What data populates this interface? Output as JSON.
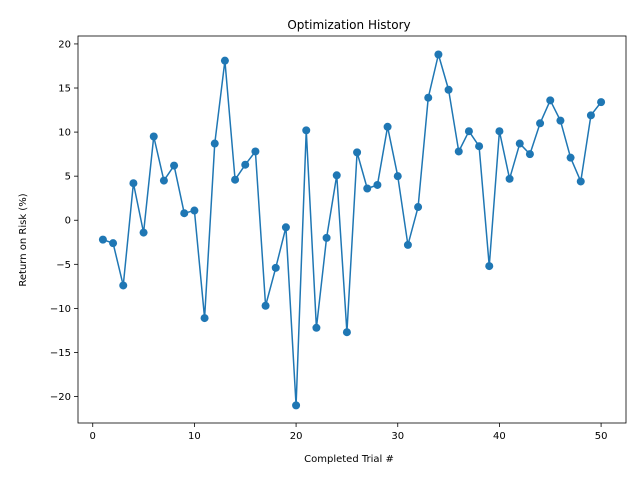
{
  "chart_data": {
    "type": "line",
    "title": "Optimization History",
    "xlabel": "Completed Trial #",
    "ylabel": "Return on Risk (%)",
    "xlim": [
      -1.45,
      52.45
    ],
    "ylim": [
      -23.0,
      20.9
    ],
    "xticks": [
      0,
      10,
      20,
      30,
      40,
      50
    ],
    "yticks": [
      -20,
      -15,
      -10,
      -5,
      0,
      5,
      10,
      15,
      20
    ],
    "grid": false,
    "color": "#1f77b4",
    "series": [
      {
        "x": [
          1,
          2,
          3,
          4,
          5,
          6,
          7,
          8,
          9,
          10,
          11,
          12,
          13,
          14,
          15,
          16,
          17,
          18,
          19,
          20,
          21,
          22,
          23,
          24,
          25,
          26,
          27,
          28,
          29,
          30,
          31,
          32,
          33,
          34,
          35,
          36,
          37,
          38,
          39,
          40,
          41,
          42,
          43,
          44,
          45,
          46,
          47,
          48,
          49,
          50
        ],
        "y": [
          -2.2,
          -2.6,
          -7.4,
          4.2,
          -1.4,
          9.5,
          4.5,
          6.2,
          0.8,
          1.1,
          -11.1,
          8.7,
          18.1,
          4.6,
          6.3,
          7.8,
          -9.7,
          -5.4,
          -0.8,
          -21.0,
          10.2,
          -12.2,
          -2.0,
          5.1,
          -12.7,
          7.7,
          3.6,
          4.0,
          10.6,
          5.0,
          -2.8,
          1.5,
          13.9,
          18.8,
          14.8,
          7.8,
          10.1,
          8.4,
          -5.2,
          10.1,
          4.7,
          8.7,
          7.5,
          11.0,
          13.6,
          11.3,
          7.1,
          4.4,
          11.9,
          13.4
        ]
      }
    ]
  }
}
